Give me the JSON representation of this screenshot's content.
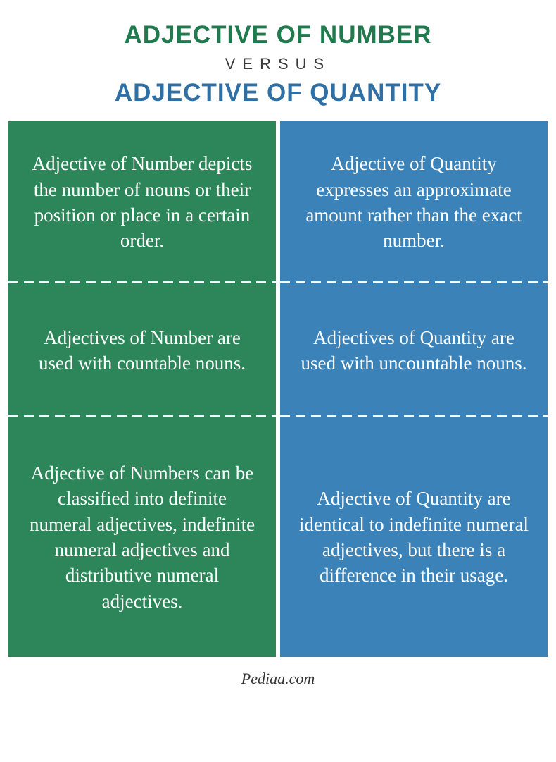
{
  "header": {
    "title1": "ADJECTIVE OF NUMBER",
    "versus": "VERSUS",
    "title2": "ADJECTIVE OF QUANTITY",
    "title1_color": "#1f7a4d",
    "versus_color": "#3a3a3a",
    "title2_color": "#2f6fa3",
    "title_fontsize": "35px",
    "versus_fontsize": "22px"
  },
  "colors": {
    "left_bg": "#2d8659",
    "right_bg": "#3a82b8",
    "cell_text": "#ffffff",
    "page_bg": "#ffffff"
  },
  "rows": [
    {
      "left": "Adjective of Number depicts the number of nouns or their position or place in a certain order.",
      "right": "Adjective of Quantity expresses an approximate amount rather than the exact number."
    },
    {
      "left": "Adjectives of Number are used with countable nouns.",
      "right": "Adjectives of Quantity are used with uncountable nouns."
    },
    {
      "left": "Adjective of Numbers can be classified into definite numeral adjectives, indefinite numeral adjectives and distributive numeral adjectives.",
      "right": "Adjective of Quantity are identical to indefinite numeral adjectives, but there is a difference in their usage."
    }
  ],
  "footer": {
    "text": "Pediaa.com",
    "color": "#333333",
    "fontsize": "22px"
  }
}
